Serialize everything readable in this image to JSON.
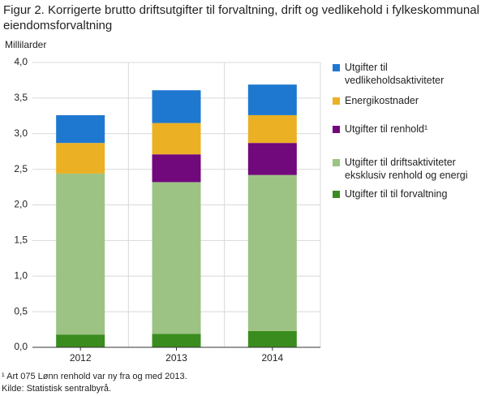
{
  "chart_data": {
    "type": "stacked_bar",
    "title": "Figur 2. Korrigerte brutto driftsutgifter til forvaltning, drift og vedlikehold i fylkeskommunal eiendomsforvaltning",
    "y_label": "Millilarder",
    "categories": [
      "2012",
      "2013",
      "2014"
    ],
    "series": [
      {
        "name": "Utgifter til til forvaltning",
        "color": "#3a8c1e",
        "values": [
          0.18,
          0.19,
          0.23
        ]
      },
      {
        "name": "Utgifter til driftsaktiviteter eksklusiv renhold og energi",
        "color": "#9dc384",
        "values": [
          2.26,
          2.13,
          2.19
        ]
      },
      {
        "name": "Utgifter til renhold¹",
        "color": "#71087c",
        "values": [
          null,
          0.39,
          0.45
        ]
      },
      {
        "name": "Energikostnader",
        "color": "#ebb024",
        "values": [
          0.43,
          0.44,
          0.39
        ]
      },
      {
        "name": "Utgifter til vedlikeholdsaktiviteter",
        "color": "#1f78d0",
        "values": [
          0.39,
          0.46,
          0.43
        ]
      }
    ],
    "ylim": [
      0,
      4
    ],
    "yticks": [
      {
        "value": 0,
        "label": "0,0"
      },
      {
        "value": 0.5,
        "label": "0,5"
      },
      {
        "value": 1,
        "label": "1,0"
      },
      {
        "value": 1.5,
        "label": "1,5"
      },
      {
        "value": 2,
        "label": "2,0"
      },
      {
        "value": 2.5,
        "label": "2,5"
      },
      {
        "value": 3,
        "label": "3,0"
      },
      {
        "value": 3.5,
        "label": "3,5"
      },
      {
        "value": 4,
        "label": "4,0"
      }
    ],
    "grid": true,
    "footnote": "¹ Art 075 Lønn renhold var ny fra og med 2013.",
    "source": "Kilde: Statistisk sentralbyrå."
  }
}
